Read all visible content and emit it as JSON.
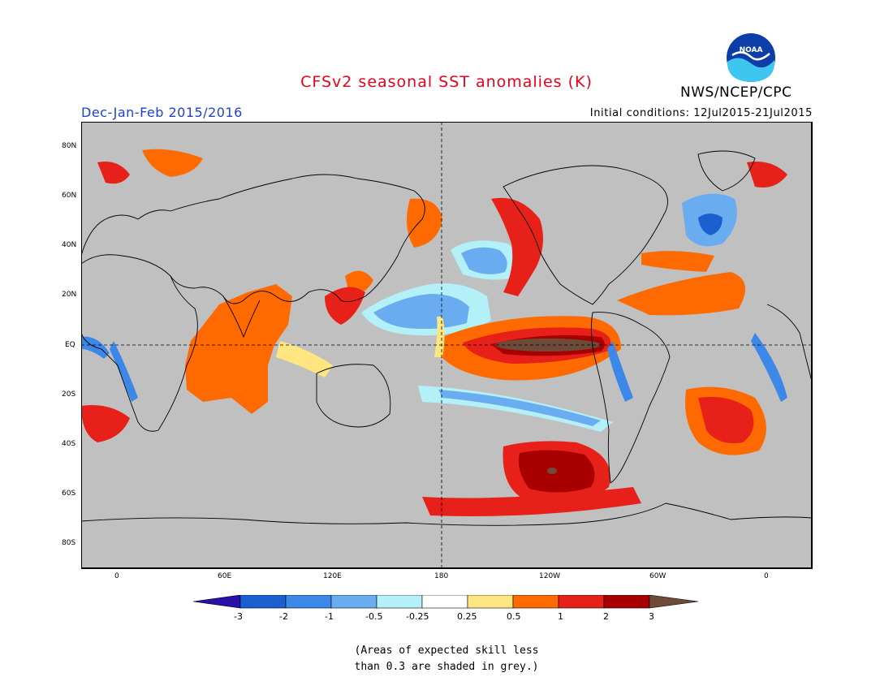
{
  "header": {
    "title": "CFSv2 seasonal SST anomalies (K)",
    "season": "Dec-Jan-Feb 2015/2016",
    "initial_conditions": "Initial conditions: 12Jul2015-21Jul2015",
    "agency": "NWS/NCEP/CPC",
    "logo_text": "NOAA"
  },
  "map": {
    "lat_labels": [
      "80N",
      "60N",
      "40N",
      "20N",
      "EQ",
      "20S",
      "40S",
      "60S",
      "80S"
    ],
    "lon_labels": [
      "0",
      "60E",
      "120E",
      "180",
      "120W",
      "60W",
      "0"
    ],
    "reference_lines": [
      "equator dashed",
      "180 meridian dashed"
    ],
    "grey_meaning": "low skill"
  },
  "colorbar": {
    "labels": [
      "-3",
      "-2",
      "-1",
      "-0.5",
      "-0.25",
      "0.25",
      "0.5",
      "1",
      "2",
      "3"
    ],
    "colors": [
      "#2b0faa",
      "#1a60d0",
      "#3c88e8",
      "#6aacf0",
      "#b4f0f8",
      "#ffffff",
      "#ffe680",
      "#ff6a00",
      "#e8201a",
      "#a80000",
      "#6e4a38"
    ]
  },
  "footnote": {
    "line1": "(Areas of expected skill less",
    "line2": "than 0.3 are shaded in grey.)"
  }
}
